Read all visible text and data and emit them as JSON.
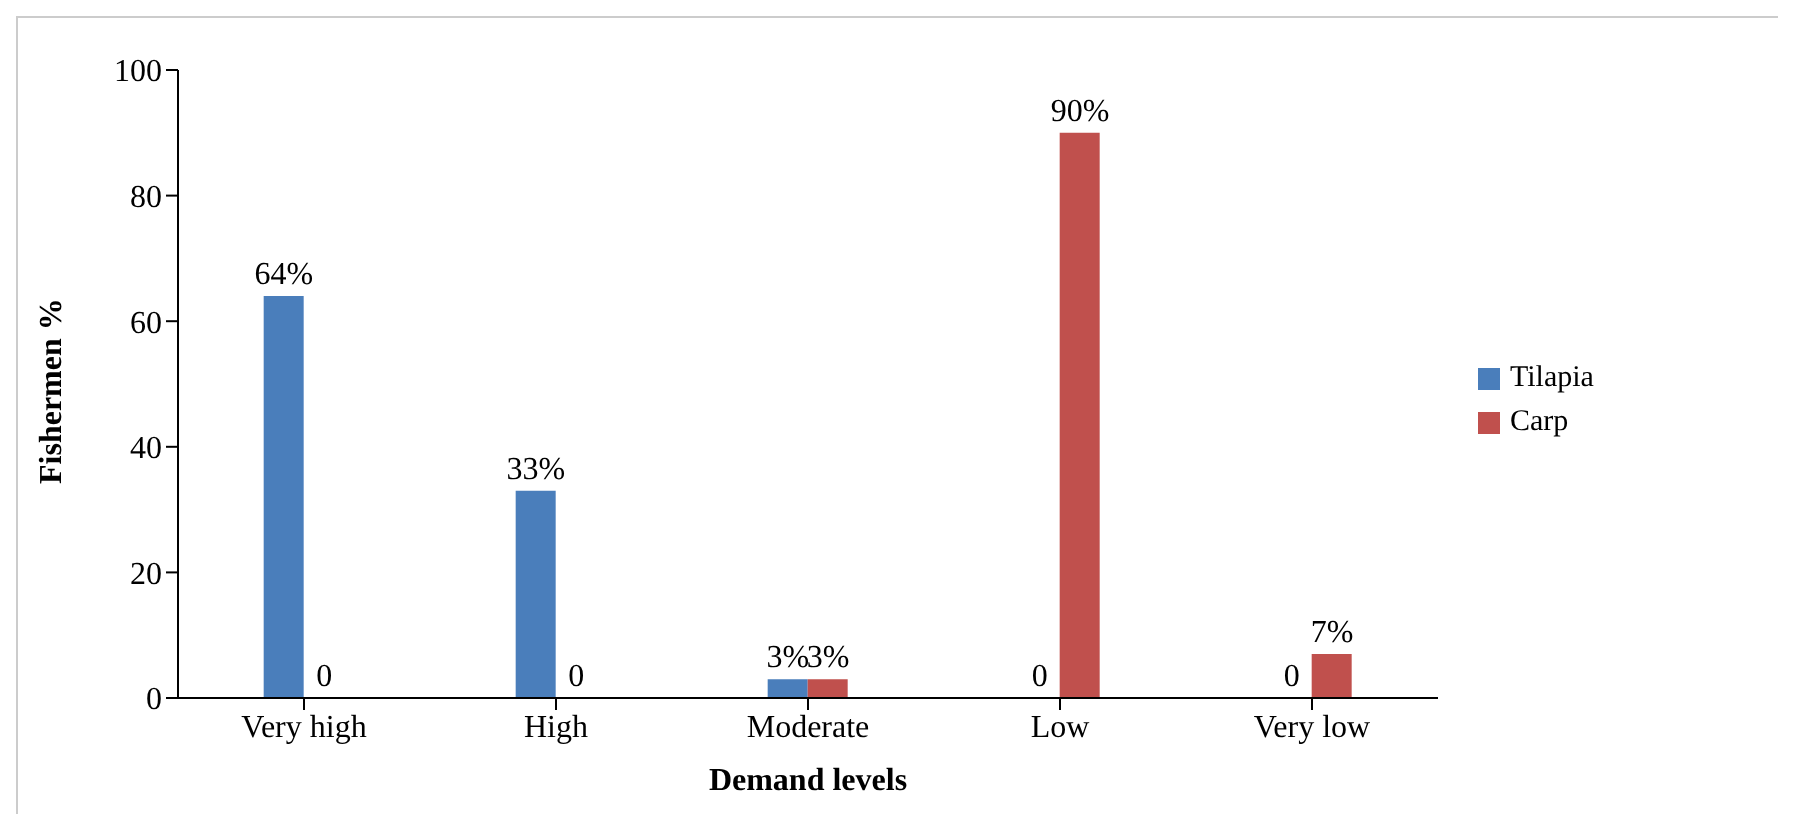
{
  "chart_data": {
    "type": "bar",
    "xlabel": "Demand levels",
    "ylabel": "Fishermen %",
    "categories": [
      "Very high",
      "High",
      "Moderate",
      "Low",
      "Very low"
    ],
    "series": [
      {
        "name": "Tilapia",
        "color": "#4a7ebb",
        "values": [
          64,
          33,
          3,
          0,
          0
        ],
        "value_labels": [
          "64%",
          "33%",
          "3%",
          "0",
          "0"
        ]
      },
      {
        "name": "Carp",
        "color": "#c0504d",
        "values": [
          0,
          0,
          3,
          90,
          7
        ],
        "value_labels": [
          "0",
          "0",
          "3%",
          "90%",
          "7%"
        ]
      }
    ],
    "ylim": [
      0,
      100
    ],
    "yticks": [
      0,
      20,
      40,
      60,
      80,
      100
    ],
    "legend": "right"
  }
}
